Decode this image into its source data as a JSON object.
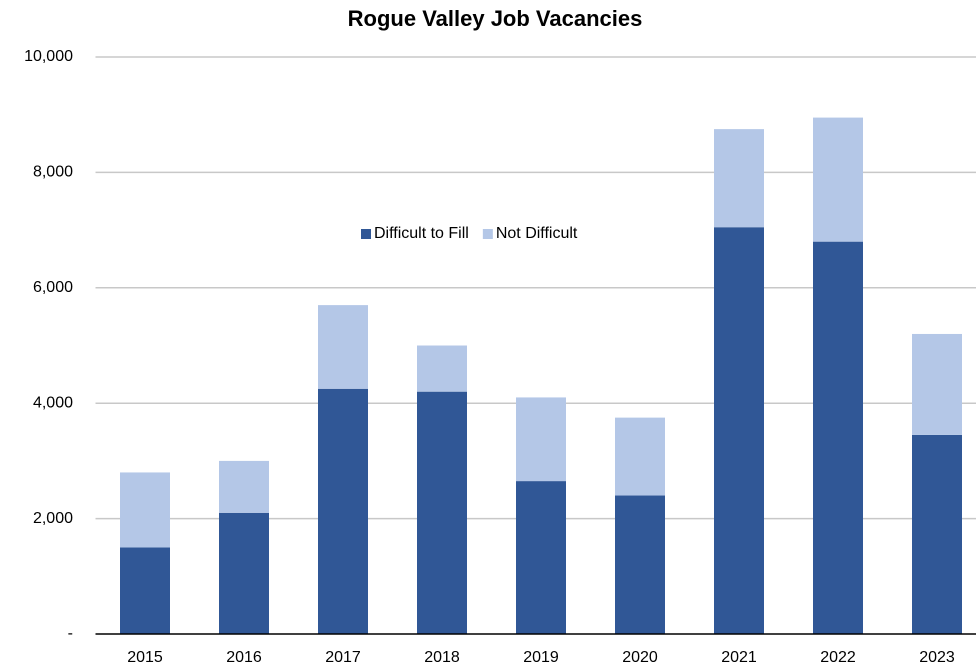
{
  "chart_data": {
    "type": "stacked_bar",
    "title": "Rogue Valley Job Vacancies",
    "categories": [
      "2015",
      "2016",
      "2017",
      "2018",
      "2019",
      "2020",
      "2021",
      "2022",
      "2023"
    ],
    "series": [
      {
        "name": "Difficult to Fill",
        "color": "#305796",
        "values": [
          1500,
          2100,
          4250,
          4200,
          2650,
          2400,
          7050,
          6800,
          3450
        ]
      },
      {
        "name": "Not Difficult",
        "color": "#b4c7e7",
        "values": [
          1300,
          900,
          1450,
          800,
          1450,
          1350,
          1700,
          2150,
          1750
        ]
      }
    ],
    "ylim": [
      0,
      10000
    ],
    "yticks": [
      {
        "value": 0,
        "label": "-"
      },
      {
        "value": 2000,
        "label": "2,000"
      },
      {
        "value": 4000,
        "label": "4,000"
      },
      {
        "value": 6000,
        "label": "6,000"
      },
      {
        "value": 8000,
        "label": "8,000"
      },
      {
        "value": 10000,
        "label": "10,000"
      }
    ],
    "grid": true,
    "legend": "center"
  }
}
